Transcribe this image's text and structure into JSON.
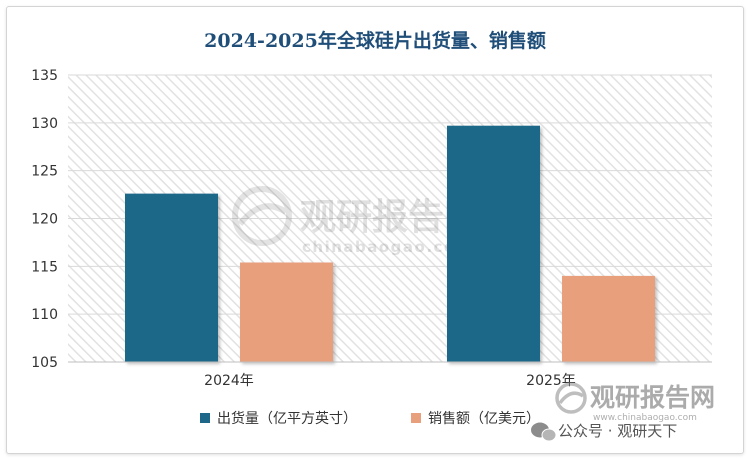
{
  "chart_data": {
    "type": "bar",
    "title": "2024-2025年全球硅片出货量、销售额",
    "categories": [
      "2024年",
      "2025年"
    ],
    "series": [
      {
        "name": "出货量（亿平方英寸）",
        "values": [
          122.6,
          129.7
        ],
        "color": "#1f6788"
      },
      {
        "name": "销售额（亿美元）",
        "values": [
          115.4,
          114.0
        ],
        "color": "#e89f7c"
      }
    ],
    "ylim": [
      105,
      135
    ],
    "yticks": [
      105,
      110,
      115,
      120,
      125,
      130,
      135
    ],
    "xlabel": "",
    "ylabel": "",
    "grid": "horizontal",
    "legend": "bottom-center"
  },
  "watermark": {
    "brand": "观研报告网",
    "url": "chinabaogao.com",
    "footer_brand": "观研报告网",
    "footer_url": "www.chinabaogao.com",
    "wechat_label": "公众号 · 观研天下"
  },
  "colors": {
    "title": "#1f4e79",
    "plot_background_stripe": "#ececec",
    "grid": "#d9d9d9"
  }
}
